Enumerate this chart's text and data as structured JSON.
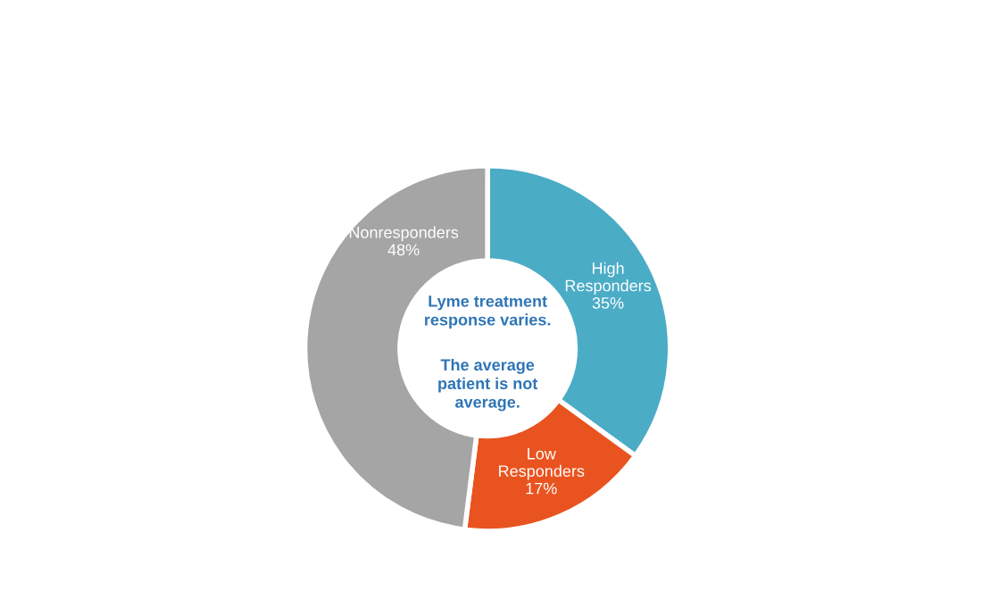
{
  "chart_data": {
    "type": "donut",
    "categories": [
      "High Responders",
      "Low Responders",
      "Nonresponders"
    ],
    "values": [
      35,
      17,
      48
    ],
    "value_labels": [
      "35%",
      "17%",
      "48%"
    ],
    "colors": [
      "#4bacc6",
      "#e9531f",
      "#a5a5a5"
    ],
    "annotations": [
      "Lyme treatment response varies.",
      "The average patient is not average."
    ]
  }
}
